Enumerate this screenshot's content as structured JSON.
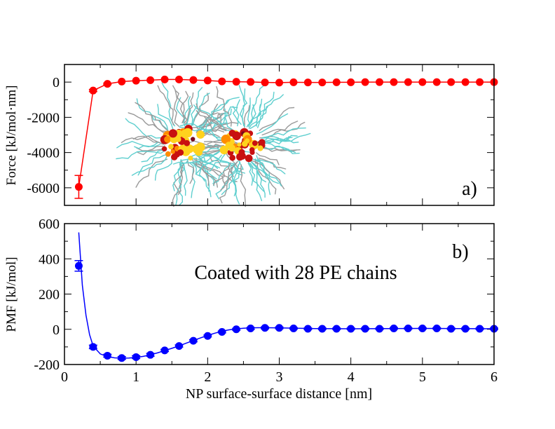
{
  "chart_data": [
    {
      "type": "line",
      "panel_label": "a)",
      "xlabel": "",
      "ylabel": "Force [kJ/mol·nm]",
      "xlim": [
        0,
        6
      ],
      "ylim": [
        -7000,
        1000
      ],
      "xticks": [
        0,
        1,
        2,
        3,
        4,
        5,
        6
      ],
      "yticks": [
        -6000,
        -4000,
        -2000,
        0
      ],
      "ytick_labels": [
        "-6000",
        "-4000",
        "-2000",
        "0"
      ],
      "color": "#ff0000",
      "series": [
        {
          "name": "Force",
          "x": [
            0.2,
            0.4,
            0.6,
            0.8,
            1.0,
            1.2,
            1.4,
            1.6,
            1.8,
            2.0,
            2.2,
            2.4,
            2.6,
            2.8,
            3.0,
            3.2,
            3.4,
            3.6,
            3.8,
            4.0,
            4.2,
            4.4,
            4.6,
            4.8,
            5.0,
            5.2,
            5.4,
            5.6,
            5.8,
            6.0
          ],
          "y": [
            -5950,
            -480,
            -100,
            30,
            80,
            110,
            150,
            150,
            120,
            90,
            40,
            20,
            10,
            -20,
            -30,
            -10,
            -20,
            -20,
            -10,
            -10,
            0,
            0,
            0,
            0,
            0,
            0,
            0,
            0,
            0,
            0
          ],
          "err": [
            650,
            60,
            40,
            30,
            30,
            30,
            30,
            30,
            30,
            30,
            30,
            30,
            30,
            30,
            30,
            30,
            30,
            30,
            30,
            30,
            30,
            30,
            30,
            30,
            30,
            30,
            30,
            30,
            30,
            30
          ]
        }
      ],
      "inset": "snapshot of two nanoparticles (yellow, orange and dark red cores) coated with polymer chains (cyan and grey)"
    },
    {
      "type": "line",
      "panel_label": "b)",
      "annotation": "Coated with 28 PE chains",
      "xlabel": "NP surface-surface distance [nm]",
      "ylabel": "PMF [kJ/mol]",
      "xlim": [
        0,
        6
      ],
      "ylim": [
        -200,
        600
      ],
      "xticks": [
        0,
        1,
        2,
        3,
        4,
        5,
        6
      ],
      "xtick_labels": [
        "0",
        "1",
        "2",
        "3",
        "4",
        "5",
        "6"
      ],
      "yticks": [
        -200,
        0,
        200,
        400,
        600
      ],
      "ytick_labels": [
        "-200",
        "0",
        "200",
        "400",
        "600"
      ],
      "color": "#0000ff",
      "series": [
        {
          "name": "PMF",
          "x": [
            0.2,
            0.4,
            0.6,
            0.8,
            1.0,
            1.2,
            1.4,
            1.6,
            1.8,
            2.0,
            2.2,
            2.4,
            2.6,
            2.8,
            3.0,
            3.2,
            3.4,
            3.6,
            3.8,
            4.0,
            4.2,
            4.4,
            4.6,
            4.8,
            5.0,
            5.2,
            5.4,
            5.6,
            5.8,
            6.0
          ],
          "y": [
            360,
            -100,
            -150,
            -163,
            -158,
            -145,
            -120,
            -95,
            -65,
            -38,
            -15,
            0,
            5,
            8,
            8,
            5,
            3,
            3,
            3,
            3,
            3,
            3,
            5,
            5,
            5,
            5,
            3,
            3,
            3,
            3
          ],
          "err": [
            30,
            10,
            8,
            8,
            8,
            8,
            6,
            6,
            6,
            5,
            5,
            5,
            5,
            5,
            5,
            4,
            4,
            4,
            4,
            4,
            4,
            4,
            4,
            4,
            4,
            4,
            4,
            4,
            4,
            4
          ]
        }
      ],
      "fit_curve": {
        "x": [
          0.2,
          0.25,
          0.3,
          0.35,
          0.4,
          0.5,
          0.6,
          0.7,
          0.8,
          0.9,
          1.0,
          1.1,
          1.2,
          1.3,
          1.4,
          1.5,
          1.6,
          1.7,
          1.8,
          1.9,
          2.0,
          2.1,
          2.2,
          2.3,
          2.4,
          2.5,
          2.6,
          2.7,
          2.8,
          3.0,
          3.5,
          4.0,
          4.5,
          5.0,
          5.5,
          6.0
        ],
        "y": [
          550,
          250,
          80,
          -30,
          -95,
          -140,
          -155,
          -162,
          -164,
          -163,
          -160,
          -154,
          -145,
          -134,
          -121,
          -108,
          -94,
          -79,
          -64,
          -49,
          -35,
          -22,
          -11,
          -3,
          2,
          6,
          8,
          9,
          9,
          8,
          4,
          3,
          4,
          5,
          4,
          3
        ]
      }
    }
  ]
}
